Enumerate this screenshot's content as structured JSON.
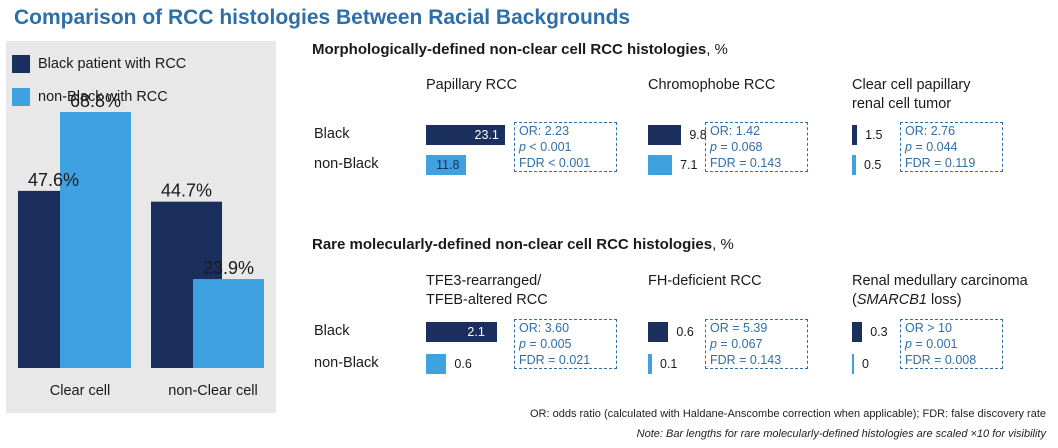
{
  "title": "Comparison of RCC histologies Between Racial Backgrounds",
  "colors": {
    "black": "#1b2f5e",
    "nonblack": "#3fa2e0",
    "title": "#2f6fa8",
    "box": "#2f6fa8"
  },
  "legend": [
    {
      "label": "Black patient with RCC",
      "color": "#1b2f5e"
    },
    {
      "label": "non-Black with RCC",
      "color": "#3fa2e0"
    }
  ],
  "chart_data": [
    {
      "type": "bar",
      "title": "",
      "categories": [
        "Clear cell",
        "non-Clear cell"
      ],
      "series": [
        {
          "name": "Black patient with RCC",
          "values": [
            47.6,
            44.7
          ],
          "labels": [
            "47.6%",
            "44.7%"
          ]
        },
        {
          "name": "non-Black with RCC",
          "values": [
            68.8,
            23.9
          ],
          "labels": [
            "68.8%",
            "23.9%"
          ]
        }
      ],
      "ylim": [
        0,
        90
      ],
      "grid": false,
      "legend": "top-left"
    },
    {
      "type": "bar",
      "orientation": "horizontal",
      "section": "Morphologically-defined non-clear cell RCC histologies",
      "unit": ", %",
      "row_labels": [
        "Black",
        "non-Black"
      ],
      "panels": [
        {
          "title_lines": [
            "Papillary RCC"
          ],
          "black": 23.1,
          "nonblack": 11.8,
          "black_label": "23.1",
          "nonblack_label": "11.8",
          "or": "OR: 2.23",
          "p": "< 0.001",
          "fdr": "FDR < 0.001"
        },
        {
          "title_lines": [
            "Chromophobe RCC"
          ],
          "black": 9.8,
          "nonblack": 7.1,
          "black_label": "9.8",
          "nonblack_label": "7.1",
          "or": "OR: 1.42",
          "p": "= 0.068",
          "fdr": "FDR = 0.143"
        },
        {
          "title_lines": [
            "Clear cell papillary",
            "renal cell tumor"
          ],
          "black": 1.5,
          "nonblack": 0.5,
          "black_label": "1.5",
          "nonblack_label": "0.5",
          "or": "OR: 2.76",
          "p": "= 0.044",
          "fdr": "FDR = 0.119"
        }
      ]
    },
    {
      "type": "bar",
      "orientation": "horizontal",
      "section": "Rare molecularly-defined non-clear cell RCC histologies",
      "unit": ", %",
      "row_labels": [
        "Black",
        "non-Black"
      ],
      "scale": 10,
      "panels": [
        {
          "title_lines": [
            "TFE3-rearranged/",
            "TFEB-altered RCC"
          ],
          "black": 2.1,
          "nonblack": 0.6,
          "black_label": "2.1",
          "nonblack_label": "0.6",
          "or": "OR: 3.60",
          "p": "= 0.005",
          "fdr": "FDR = 0.021"
        },
        {
          "title_lines": [
            "FH-deficient RCC"
          ],
          "black": 0.6,
          "nonblack": 0.1,
          "black_label": "0.6",
          "nonblack_label": "0.1",
          "or": "OR = 5.39",
          "p": "= 0.067",
          "fdr": "FDR = 0.143"
        },
        {
          "title_lines": [
            "Renal medullary carcinoma",
            "(SMARCB1 loss)"
          ],
          "black": 0.3,
          "nonblack": 0.0,
          "black_label": "0.3",
          "nonblack_label": "0",
          "or": "OR > 10",
          "p": "= 0.001",
          "fdr": "FDR = 0.008"
        }
      ]
    }
  ],
  "p_symbol": "p",
  "footnote1": "OR: odds ratio (calculated with Haldane-Anscombe correction when applicable); FDR: false discovery rate",
  "footnote2": "Note: Bar lengths for rare molecularly-defined histologies are scaled ×10 for visibility"
}
